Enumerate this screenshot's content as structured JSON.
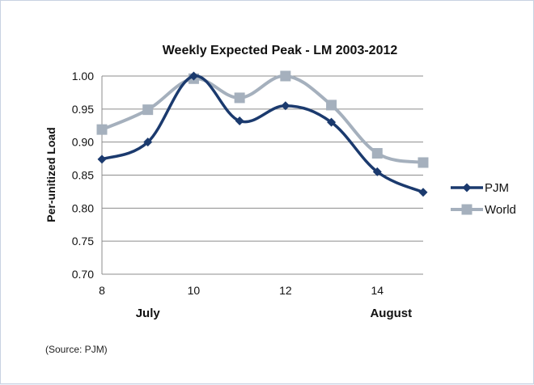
{
  "chart_data": {
    "type": "line",
    "title": "Weekly Expected Peak  - LM 2003-2012",
    "ylabel": "Per-unitized Load",
    "xlabel": "",
    "x": [
      8,
      9,
      10,
      11,
      12,
      13,
      14,
      15
    ],
    "x_ticks": [
      "8",
      "10",
      "12",
      "14"
    ],
    "ylim": [
      0.7,
      1.0
    ],
    "y_ticks": [
      "0.70",
      "0.75",
      "0.80",
      "0.85",
      "0.90",
      "0.95",
      "1.00"
    ],
    "month_labels": [
      {
        "label": "July",
        "x": 9
      },
      {
        "label": "August",
        "x": 14.3
      }
    ],
    "grid": "horizontal",
    "legend_position": "right",
    "series": [
      {
        "name": "PJM",
        "color": "#1b3a6e",
        "marker": "diamond",
        "values": [
          0.874,
          0.9,
          1.0,
          0.932,
          0.955,
          0.93,
          0.855,
          0.824
        ]
      },
      {
        "name": "World",
        "color": "#a5b0bd",
        "marker": "square",
        "values": [
          0.919,
          0.949,
          0.996,
          0.967,
          1.0,
          0.956,
          0.883,
          0.869
        ]
      }
    ]
  },
  "source": "(Source: PJM)"
}
